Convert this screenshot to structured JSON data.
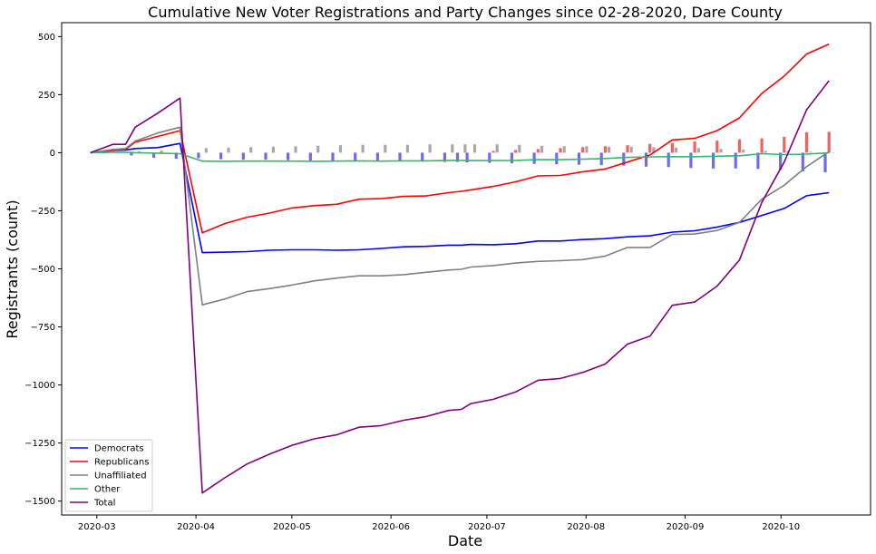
{
  "chart_data": {
    "type": "line",
    "title": "Cumulative New Voter Registrations and Party Changes since 02-28-2020, Dare County",
    "xlabel": "Date",
    "ylabel": "Registrants (count)",
    "xlim": [
      "2020-02-19",
      "2020-10-29"
    ],
    "ylim": [
      -1560,
      560
    ],
    "yticks": [
      500,
      250,
      0,
      -250,
      -500,
      -750,
      -1000,
      -1250,
      -1500
    ],
    "ytick_labels": [
      "500",
      "250",
      "0",
      "−250",
      "−500",
      "−750",
      "−1000",
      "−1250",
      "−1500"
    ],
    "xticks": [
      "2020-03-01",
      "2020-04-01",
      "2020-05-01",
      "2020-06-01",
      "2020-07-01",
      "2020-08-01",
      "2020-09-01",
      "2020-10-01"
    ],
    "xtick_labels": [
      "2020-03",
      "2020-04",
      "2020-05",
      "2020-06",
      "2020-07",
      "2020-08",
      "2020-09",
      "2020-10"
    ],
    "grid": false,
    "legend": {
      "placement": "lower-left",
      "entries": [
        "Democrats",
        "Republicans",
        "Unaffiliated",
        "Other",
        "Total"
      ]
    },
    "x": [
      "2020-02-28",
      "2020-03-06",
      "2020-03-10",
      "2020-03-13",
      "2020-03-20",
      "2020-03-27",
      "2020-04-03",
      "2020-04-10",
      "2020-04-17",
      "2020-04-24",
      "2020-05-01",
      "2020-05-08",
      "2020-05-15",
      "2020-05-22",
      "2020-05-29",
      "2020-06-05",
      "2020-06-12",
      "2020-06-19",
      "2020-06-23",
      "2020-06-26",
      "2020-07-03",
      "2020-07-10",
      "2020-07-17",
      "2020-07-24",
      "2020-07-31",
      "2020-08-07",
      "2020-08-14",
      "2020-08-21",
      "2020-08-28",
      "2020-09-04",
      "2020-09-11",
      "2020-09-18",
      "2020-09-25",
      "2020-10-02",
      "2020-10-09",
      "2020-10-16"
    ],
    "series": [
      {
        "name": "Democrats",
        "color": "#0000ff",
        "values": [
          0,
          10,
          12,
          18,
          22,
          40,
          -430,
          -428,
          -426,
          -420,
          -418,
          -418,
          -420,
          -418,
          -412,
          -405,
          -403,
          -398,
          -398,
          -395,
          -396,
          -392,
          -380,
          -380,
          -374,
          -370,
          -362,
          -358,
          -342,
          -336,
          -320,
          -300,
          -270,
          -240,
          -185,
          -172
        ]
      },
      {
        "name": "Republicans",
        "color": "#ff0000",
        "values": [
          0,
          10,
          15,
          45,
          70,
          95,
          -345,
          -305,
          -278,
          -260,
          -238,
          -228,
          -222,
          -200,
          -198,
          -188,
          -186,
          -172,
          -166,
          -160,
          -145,
          -125,
          -100,
          -98,
          -82,
          -70,
          -40,
          -10,
          55,
          62,
          95,
          150,
          255,
          330,
          425,
          468
        ]
      },
      {
        "name": "Unaffiliated",
        "color": "#808080",
        "values": [
          0,
          14,
          18,
          50,
          85,
          110,
          -655,
          -630,
          -598,
          -585,
          -570,
          -552,
          -540,
          -530,
          -530,
          -525,
          -515,
          -505,
          -502,
          -492,
          -486,
          -475,
          -468,
          -465,
          -460,
          -445,
          -408,
          -408,
          -352,
          -350,
          -335,
          -300,
          -200,
          -140,
          -60,
          5
        ]
      },
      {
        "name": "Other",
        "color": "#3cb371",
        "values": [
          0,
          2,
          2,
          0,
          -2,
          -4,
          -36,
          -37,
          -36,
          -36,
          -36,
          -37,
          -36,
          -35,
          -36,
          -35,
          -35,
          -33,
          -33,
          -34,
          -34,
          -33,
          -30,
          -30,
          -28,
          -25,
          -20,
          -18,
          -17,
          -17,
          -15,
          -13,
          -4,
          -8,
          -6,
          0
        ]
      },
      {
        "name": "Total",
        "color": "#800080",
        "values": [
          0,
          36,
          36,
          110,
          170,
          235,
          -1465,
          -1400,
          -1340,
          -1298,
          -1260,
          -1232,
          -1215,
          -1182,
          -1175,
          -1152,
          -1136,
          -1110,
          -1105,
          -1080,
          -1062,
          -1030,
          -980,
          -972,
          -946,
          -910,
          -824,
          -790,
          -657,
          -643,
          -574,
          -462,
          -214,
          -40,
          185,
          310
        ]
      }
    ],
    "weekly_changes": {
      "type": "bar",
      "x": [
        "2020-03-06",
        "2020-03-10",
        "2020-03-13",
        "2020-03-20",
        "2020-03-27",
        "2020-04-03",
        "2020-04-10",
        "2020-04-17",
        "2020-04-24",
        "2020-05-01",
        "2020-05-08",
        "2020-05-15",
        "2020-05-22",
        "2020-05-29",
        "2020-06-05",
        "2020-06-12",
        "2020-06-19",
        "2020-06-23",
        "2020-06-26",
        "2020-07-03",
        "2020-07-10",
        "2020-07-17",
        "2020-07-24",
        "2020-07-31",
        "2020-08-07",
        "2020-08-14",
        "2020-08-21",
        "2020-08-28",
        "2020-09-04",
        "2020-09-11",
        "2020-09-18",
        "2020-09-25",
        "2020-10-02",
        "2020-10-09",
        "2020-10-16"
      ],
      "series": [
        {
          "name": "Democrats",
          "color": "#6c6cf0",
          "values": [
            0,
            0,
            -12,
            -22,
            -26,
            -24,
            -28,
            -30,
            -30,
            -32,
            -34,
            -34,
            -34,
            -36,
            -36,
            -38,
            -40,
            -40,
            -42,
            -44,
            -46,
            -48,
            -50,
            -52,
            -54,
            -56,
            -60,
            -62,
            -66,
            -68,
            -68,
            -70,
            -74,
            -80,
            -84
          ]
        },
        {
          "name": "Republicans",
          "color": "#f26060",
          "values": [
            0,
            0,
            0,
            0,
            0,
            0,
            0,
            0,
            0,
            0,
            0,
            0,
            0,
            0,
            0,
            0,
            0,
            0,
            0,
            8,
            12,
            16,
            20,
            24,
            28,
            32,
            38,
            42,
            48,
            52,
            58,
            62,
            68,
            88,
            90
          ]
        },
        {
          "name": "Unaffiliated",
          "color": "#a8a8a8",
          "values": [
            0,
            0,
            6,
            10,
            16,
            20,
            22,
            24,
            26,
            28,
            30,
            32,
            34,
            34,
            34,
            36,
            36,
            36,
            36,
            36,
            34,
            30,
            28,
            28,
            26,
            26,
            24,
            22,
            20,
            16,
            14,
            8,
            6,
            4,
            2
          ]
        }
      ]
    }
  }
}
